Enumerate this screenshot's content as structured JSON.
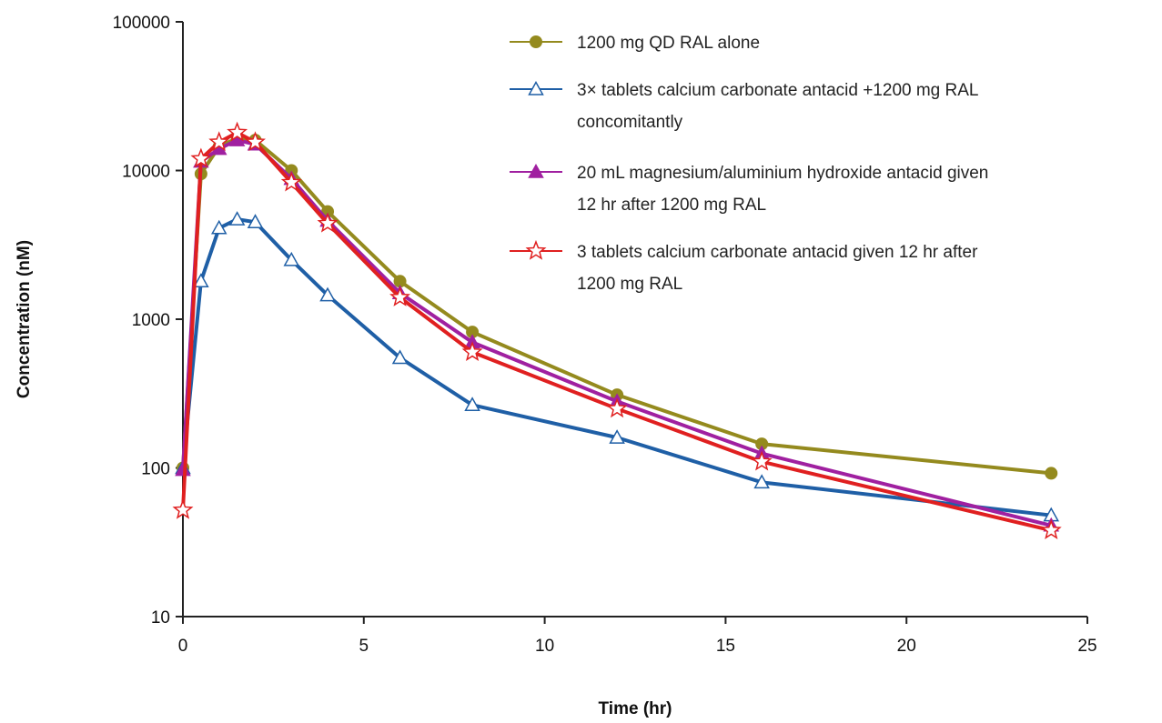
{
  "chart_data": {
    "type": "line",
    "title": "",
    "xlabel": "Time (hr)",
    "ylabel": "Concentration (nM)",
    "xlim": [
      0,
      25
    ],
    "ylim": [
      10,
      100000
    ],
    "yscale": "log",
    "x_ticks": [
      "0",
      "5",
      "10",
      "15",
      "20",
      "25"
    ],
    "y_ticks": [
      "10",
      "100",
      "1000",
      "10000",
      "100000"
    ],
    "grid": false,
    "legend_position": "top-right",
    "series": [
      {
        "name": "1200 mg QD RAL alone",
        "color": "#948a1e",
        "marker": "circle",
        "x": [
          0,
          0.5,
          1,
          1.5,
          2,
          3,
          4,
          6,
          8,
          12,
          16,
          24
        ],
        "y": [
          100,
          9500,
          14500,
          16500,
          16000,
          10000,
          5300,
          1800,
          820,
          310,
          145,
          92
        ]
      },
      {
        "name": "3× tablets calcium carbonate antacid +1200 mg RAL concomitantly",
        "color": "#1f5fa6",
        "marker": "triangle-open",
        "x": [
          0,
          0.5,
          1,
          1.5,
          2,
          3,
          4,
          6,
          8,
          12,
          16,
          24
        ],
        "y": [
          100,
          1800,
          4100,
          4700,
          4500,
          2500,
          1450,
          550,
          265,
          160,
          80,
          48
        ]
      },
      {
        "name": "20 mL magnesium/aluminium  hydroxide antacid given 12 hr after 1200 mg RAL",
        "color": "#a020a0",
        "marker": "triangle",
        "x": [
          0,
          0.5,
          1,
          1.5,
          2,
          3,
          4,
          6,
          8,
          12,
          16,
          24
        ],
        "y": [
          97,
          11500,
          14000,
          16000,
          15000,
          8800,
          4600,
          1500,
          700,
          280,
          125,
          41
        ]
      },
      {
        "name": "3 tablets calcium carbonate antacid given 12 hr after 1200 mg RAL",
        "color": "#e02020",
        "marker": "star-open",
        "x": [
          0,
          0.5,
          1,
          1.5,
          2,
          3,
          4,
          6,
          8,
          12,
          16,
          24
        ],
        "y": [
          52,
          12000,
          15500,
          18000,
          15500,
          8300,
          4400,
          1400,
          600,
          250,
          110,
          38
        ]
      }
    ]
  },
  "legend": {
    "entries": [
      {
        "lines": [
          "1200 mg QD RAL alone"
        ]
      },
      {
        "lines": [
          "3× tablets calcium carbonate antacid +1200 mg RAL",
          "concomitantly"
        ]
      },
      {
        "lines": [
          "20 mL magnesium/aluminium  hydroxide antacid given",
          "12 hr after 1200 mg RAL"
        ]
      },
      {
        "lines": [
          "3 tablets calcium carbonate antacid given 12 hr after",
          "1200 mg RAL"
        ]
      }
    ]
  }
}
